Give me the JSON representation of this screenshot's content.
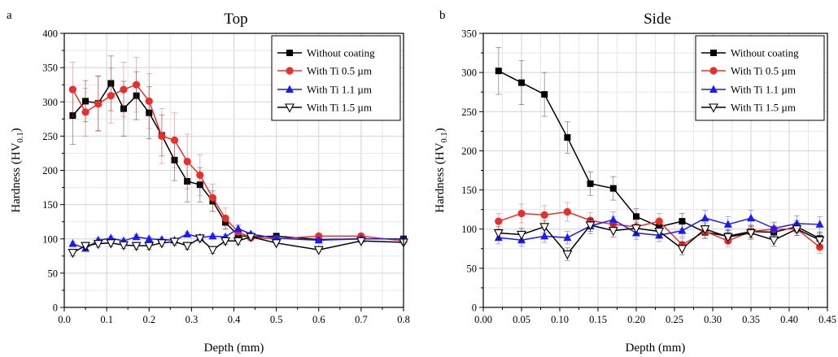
{
  "figure": {
    "panels": [
      {
        "letter": "a",
        "title": "Top",
        "xlabel": "Depth (mm)",
        "ylabel": "Hardness (HV",
        "ylabel_sub": "0.1",
        "ylabel_end": ")"
      },
      {
        "letter": "b",
        "title": "Side",
        "xlabel": "Depth (mm)",
        "ylabel": "Hardness (HV",
        "ylabel_sub": "0.1",
        "ylabel_end": ")"
      }
    ]
  },
  "chart_data": [
    {
      "type": "line",
      "title": "Top",
      "panel_letter": "a",
      "xlabel": "Depth (mm)",
      "ylabel": "Hardness (HV0.1)",
      "xlim": [
        0.0,
        0.8
      ],
      "ylim": [
        0,
        400
      ],
      "xticks": [
        "0.0",
        "0.1",
        "0.2",
        "0.3",
        "0.4",
        "0.5",
        "0.6",
        "0.7",
        "0.8"
      ],
      "yticks": [
        "0",
        "50",
        "100",
        "150",
        "200",
        "250",
        "300",
        "350",
        "400"
      ],
      "grid": true,
      "legend_position": "top-right",
      "series": [
        {
          "name": "Without coating",
          "color": "#000000",
          "marker": "square",
          "x": [
            0.02,
            0.05,
            0.08,
            0.11,
            0.14,
            0.17,
            0.2,
            0.23,
            0.26,
            0.29,
            0.32,
            0.35,
            0.38,
            0.41,
            0.44,
            0.5,
            0.6,
            0.7,
            0.8
          ],
          "y": [
            280,
            301,
            298,
            327,
            290,
            309,
            284,
            251,
            215,
            184,
            179,
            155,
            124,
            105,
            103,
            104,
            99,
            100,
            100
          ],
          "err": [
            42,
            30,
            40,
            40,
            40,
            35,
            38,
            30,
            30,
            30,
            25,
            15,
            10,
            8,
            5,
            3,
            3,
            3,
            3
          ]
        },
        {
          "name": "With Ti 0.5 µm",
          "color": "#e8302a",
          "marker": "circle",
          "x": [
            0.02,
            0.05,
            0.08,
            0.11,
            0.14,
            0.17,
            0.2,
            0.23,
            0.26,
            0.29,
            0.32,
            0.35,
            0.38,
            0.41,
            0.44,
            0.5,
            0.6,
            0.7,
            0.8
          ],
          "y": [
            318,
            285,
            297,
            309,
            318,
            325,
            301,
            250,
            244,
            213,
            193,
            160,
            130,
            110,
            102,
            100,
            104,
            104,
            97
          ],
          "err": [
            40,
            35,
            40,
            40,
            40,
            40,
            40,
            40,
            40,
            40,
            30,
            20,
            15,
            10,
            5,
            3,
            3,
            3,
            3
          ]
        },
        {
          "name": "With Ti 1.1 µm",
          "color": "#1a1aff",
          "marker": "triangle-up",
          "x": [
            0.02,
            0.05,
            0.08,
            0.11,
            0.14,
            0.17,
            0.2,
            0.23,
            0.26,
            0.29,
            0.32,
            0.35,
            0.38,
            0.41,
            0.44,
            0.5,
            0.6,
            0.7,
            0.8
          ],
          "y": [
            93,
            86,
            98,
            101,
            97,
            103,
            100,
            99,
            98,
            107,
            102,
            104,
            103,
            115,
            107,
            101,
            98,
            100,
            100
          ],
          "err": [
            3,
            3,
            3,
            3,
            3,
            3,
            3,
            3,
            3,
            3,
            3,
            3,
            3,
            5,
            3,
            3,
            3,
            3,
            3
          ]
        },
        {
          "name": "With Ti 1.5 µm",
          "color": "#000000",
          "marker": "triangle-down-open",
          "x": [
            0.02,
            0.05,
            0.08,
            0.11,
            0.14,
            0.17,
            0.2,
            0.23,
            0.26,
            0.29,
            0.32,
            0.35,
            0.38,
            0.41,
            0.44,
            0.5,
            0.6,
            0.7,
            0.8
          ],
          "y": [
            80,
            90,
            93,
            94,
            91,
            90,
            90,
            94,
            96,
            90,
            101,
            84,
            97,
            97,
            103,
            94,
            84,
            97,
            95
          ],
          "err": [
            5,
            5,
            5,
            5,
            5,
            5,
            5,
            5,
            5,
            5,
            5,
            5,
            5,
            5,
            3,
            3,
            3,
            3,
            3
          ]
        }
      ]
    },
    {
      "type": "line",
      "title": "Side",
      "panel_letter": "b",
      "xlabel": "Depth (mm)",
      "ylabel": "Hardness (HV0.1)",
      "xlim": [
        0.0,
        0.45
      ],
      "ylim": [
        0,
        350
      ],
      "xticks": [
        "0.00",
        "0.05",
        "0.10",
        "0.15",
        "0.20",
        "0.25",
        "0.30",
        "0.35",
        "0.40",
        "0.45"
      ],
      "yticks": [
        "0",
        "50",
        "100",
        "150",
        "200",
        "250",
        "300",
        "350"
      ],
      "grid": true,
      "legend_position": "top-right",
      "series": [
        {
          "name": "Without coating",
          "color": "#000000",
          "marker": "square",
          "x": [
            0.02,
            0.05,
            0.08,
            0.11,
            0.14,
            0.17,
            0.2,
            0.23,
            0.26,
            0.29,
            0.32,
            0.35,
            0.38,
            0.41,
            0.44
          ],
          "y": [
            302,
            287,
            272,
            217,
            158,
            152,
            116,
            103,
            110,
            96,
            91,
            97,
            96,
            103,
            88
          ],
          "err": [
            30,
            28,
            28,
            20,
            15,
            15,
            10,
            10,
            10,
            8,
            8,
            8,
            8,
            8,
            8
          ]
        },
        {
          "name": "With Ti 0.5 µm",
          "color": "#e8302a",
          "marker": "circle",
          "x": [
            0.02,
            0.05,
            0.08,
            0.11,
            0.14,
            0.17,
            0.2,
            0.23,
            0.26,
            0.29,
            0.32,
            0.35,
            0.38,
            0.41,
            0.44
          ],
          "y": [
            110,
            120,
            118,
            122,
            111,
            106,
            103,
            110,
            80,
            97,
            85,
            97,
            100,
            100,
            77
          ],
          "err": [
            10,
            12,
            12,
            12,
            10,
            10,
            10,
            10,
            8,
            8,
            8,
            8,
            8,
            8,
            8
          ]
        },
        {
          "name": "With Ti 1.1 µm",
          "color": "#1a1aff",
          "marker": "triangle-up",
          "x": [
            0.02,
            0.05,
            0.08,
            0.11,
            0.14,
            0.17,
            0.2,
            0.23,
            0.26,
            0.29,
            0.32,
            0.35,
            0.38,
            0.41,
            0.44
          ],
          "y": [
            89,
            86,
            91,
            89,
            104,
            112,
            95,
            92,
            98,
            114,
            106,
            114,
            101,
            107,
            106
          ],
          "err": [
            8,
            8,
            8,
            8,
            10,
            10,
            8,
            8,
            8,
            10,
            10,
            10,
            8,
            10,
            10
          ]
        },
        {
          "name": "With Ti 1.5 µm",
          "color": "#000000",
          "marker": "triangle-down-open",
          "x": [
            0.02,
            0.05,
            0.08,
            0.11,
            0.14,
            0.17,
            0.2,
            0.23,
            0.26,
            0.29,
            0.32,
            0.35,
            0.38,
            0.41,
            0.44
          ],
          "y": [
            95,
            93,
            103,
            68,
            105,
            98,
            101,
            97,
            75,
            100,
            90,
            95,
            86,
            100,
            86
          ],
          "err": [
            8,
            8,
            8,
            8,
            8,
            8,
            8,
            8,
            8,
            8,
            8,
            8,
            8,
            8,
            8
          ]
        }
      ]
    }
  ]
}
